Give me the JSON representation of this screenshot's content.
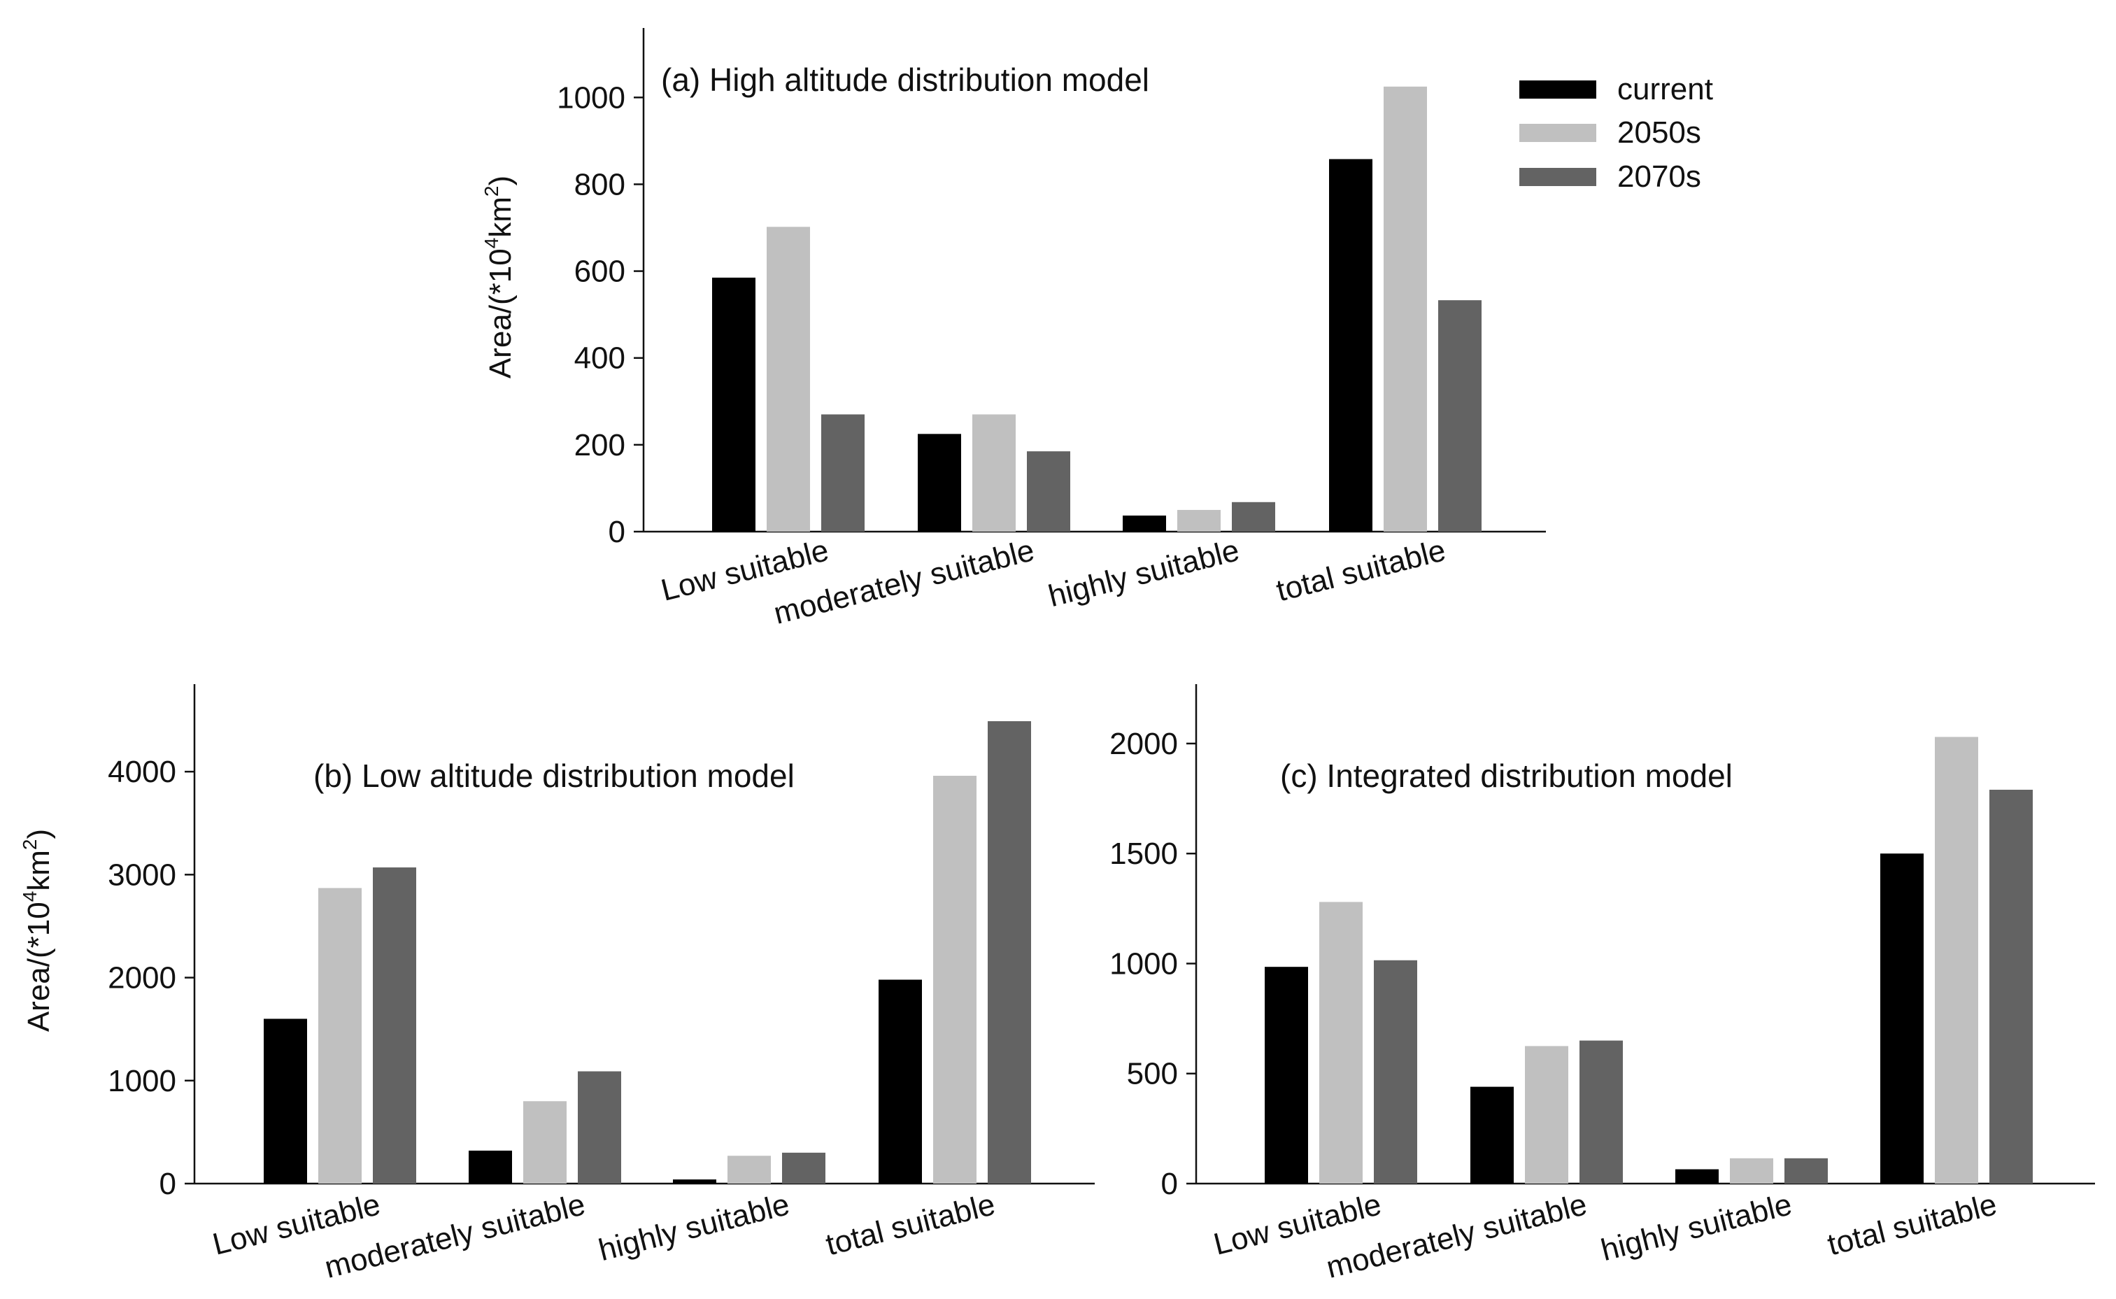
{
  "legend": {
    "entries": [
      {
        "name": "current",
        "color": "#000000"
      },
      {
        "name": "2050s",
        "color": "#c0c0c0"
      },
      {
        "name": "2070s",
        "color": "#636363"
      }
    ]
  },
  "chart_data": [
    {
      "id": "a",
      "type": "bar",
      "title": "(a) High altitude distribution model",
      "xlabel": "",
      "ylabel": "Area/(*10",
      "ylabel_sup1": "4",
      "ylabel_mid": "km",
      "ylabel_sup2": "2",
      "ylabel_end": ")",
      "categories": [
        "Low suitable",
        "moderately suitable",
        "highly suitable",
        "total suitable"
      ],
      "series": [
        {
          "name": "current",
          "values": [
            585,
            225,
            37,
            858
          ]
        },
        {
          "name": "2050s",
          "values": [
            702,
            270,
            50,
            1025
          ]
        },
        {
          "name": "2070s",
          "values": [
            270,
            185,
            68,
            533
          ]
        }
      ],
      "ylim": [
        0,
        1160
      ],
      "yticks": [
        0,
        200,
        400,
        600,
        800,
        1000
      ]
    },
    {
      "id": "b",
      "type": "bar",
      "title": "(b) Low altitude distribution model",
      "xlabel": "",
      "ylabel": "Area/(*10",
      "ylabel_sup1": "4",
      "ylabel_mid": "km",
      "ylabel_sup2": "2",
      "ylabel_end": ")",
      "categories": [
        "Low suitable",
        "moderately suitable",
        "highly suitable",
        "total suitable"
      ],
      "series": [
        {
          "name": "current",
          "values": [
            1600,
            320,
            40,
            1980
          ]
        },
        {
          "name": "2050s",
          "values": [
            2870,
            800,
            270,
            3960
          ]
        },
        {
          "name": "2070s",
          "values": [
            3070,
            1090,
            300,
            4490
          ]
        }
      ],
      "ylim": [
        0,
        4850
      ],
      "yticks": [
        0,
        1000,
        2000,
        3000,
        4000
      ]
    },
    {
      "id": "c",
      "type": "bar",
      "title": "(c) Integrated distribution model",
      "xlabel": "",
      "ylabel": "",
      "categories": [
        "Low suitable",
        "moderately suitable",
        "highly suitable",
        "total suitable"
      ],
      "series": [
        {
          "name": "current",
          "values": [
            985,
            440,
            65,
            1500
          ]
        },
        {
          "name": "2050s",
          "values": [
            1280,
            625,
            115,
            2030
          ]
        },
        {
          "name": "2070s",
          "values": [
            1015,
            650,
            115,
            1790
          ]
        }
      ],
      "ylim": [
        0,
        2270
      ],
      "yticks": [
        0,
        500,
        1000,
        1500,
        2000
      ]
    }
  ]
}
